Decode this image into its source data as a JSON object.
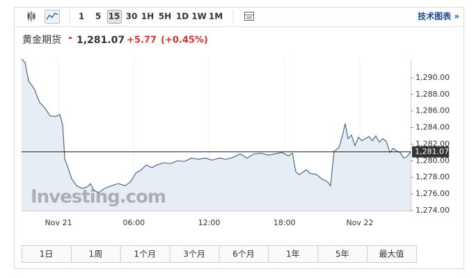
{
  "toolbar": {
    "intervals": [
      "1",
      "5",
      "15",
      "30",
      "1H",
      "5H",
      "1D",
      "1W",
      "1M"
    ],
    "link": "技术图表 »"
  },
  "header": {
    "name": "黄金期货",
    "price": "1,281.07",
    "change": "+5.77",
    "change_pct": "(+0.45%)"
  },
  "chart_data": {
    "type": "area",
    "watermark": "Investing.com",
    "color": "#4b6785",
    "fill": "#e6edf5",
    "x": [
      -2.94,
      -2.66,
      -2.38,
      -2.16,
      -1.88,
      -1.5,
      -1.11,
      -0.67,
      -0.22,
      0.11,
      0.33,
      0.5,
      0.72,
      1.05,
      1.44,
      1.88,
      2.27,
      2.55,
      2.83,
      3.22,
      3.66,
      4.21,
      4.77,
      5.32,
      5.76,
      6.15,
      6.6,
      6.98,
      7.43,
      7.82,
      8.37,
      8.93,
      9.48,
      10.03,
      10.59,
      11.14,
      11.7,
      12.25,
      12.81,
      13.36,
      13.91,
      14.47,
      15.02,
      15.58,
      16.13,
      16.69,
      17.24,
      17.79,
      18.35,
      18.63,
      18.9,
      19.18,
      19.73,
      20.01,
      20.57,
      20.95,
      21.4,
      21.67,
      21.95,
      22.34,
      22.62,
      22.84,
      23.06,
      23.34,
      23.61,
      23.89,
      24.17,
      24.45,
      24.72,
      25.0,
      25.28,
      25.55,
      25.83,
      26.11,
      26.39,
      26.66,
      26.94,
      27.22,
      27.49,
      27.77,
      28.05
    ],
    "values": [
      1292.25,
      1291.83,
      1289.58,
      1289.17,
      1288.5,
      1287.0,
      1286.42,
      1285.42,
      1285.33,
      1285.58,
      1284.33,
      1280.17,
      1279.33,
      1277.83,
      1277.0,
      1276.67,
      1276.83,
      1277.25,
      1276.42,
      1276.17,
      1276.67,
      1277.0,
      1277.25,
      1277.0,
      1277.5,
      1278.5,
      1278.92,
      1279.5,
      1279.17,
      1279.5,
      1279.75,
      1279.67,
      1280.0,
      1279.92,
      1280.33,
      1280.17,
      1280.33,
      1280.08,
      1280.33,
      1280.17,
      1280.42,
      1280.83,
      1280.33,
      1280.83,
      1280.92,
      1280.67,
      1280.83,
      1281.0,
      1280.58,
      1280.92,
      1278.67,
      1278.33,
      1278.92,
      1278.5,
      1278.33,
      1277.83,
      1277.5,
      1277.0,
      1281.17,
      1281.58,
      1283.08,
      1284.5,
      1282.67,
      1283.08,
      1281.83,
      1282.83,
      1282.42,
      1282.67,
      1282.92,
      1282.42,
      1283.0,
      1282.25,
      1282.67,
      1282.33,
      1281.0,
      1281.5,
      1281.17,
      1281.0,
      1280.33,
      1280.5,
      1281.07
    ],
    "xlim": [
      -2.94,
      28.05
    ],
    "ylim": [
      1274,
      1292.25
    ],
    "xticks": [
      {
        "value": 0,
        "label": "Nov 21"
      },
      {
        "value": 6,
        "label": "06:00"
      },
      {
        "value": 12,
        "label": "12:00"
      },
      {
        "value": 18,
        "label": "18:00"
      },
      {
        "value": 24,
        "label": "Nov 22"
      }
    ],
    "yticks": [
      {
        "value": 1274,
        "label": "1,274.00"
      },
      {
        "value": 1276,
        "label": "1,276.00"
      },
      {
        "value": 1278,
        "label": "1,278.00"
      },
      {
        "value": 1280,
        "label": "1,280.00"
      },
      {
        "value": 1282,
        "label": "1,282.00"
      },
      {
        "value": 1284,
        "label": "1,284.00"
      },
      {
        "value": 1286,
        "label": "1,286.00"
      },
      {
        "value": 1288,
        "label": "1,288.00"
      },
      {
        "value": 1290,
        "label": "1,290.00"
      }
    ],
    "reference_line": {
      "value": 1281.07,
      "label": "1,281.07"
    }
  },
  "ranges": [
    "1日",
    "1周",
    "1个月",
    "3个月",
    "6个月",
    "1年",
    "5年",
    "最大值"
  ]
}
